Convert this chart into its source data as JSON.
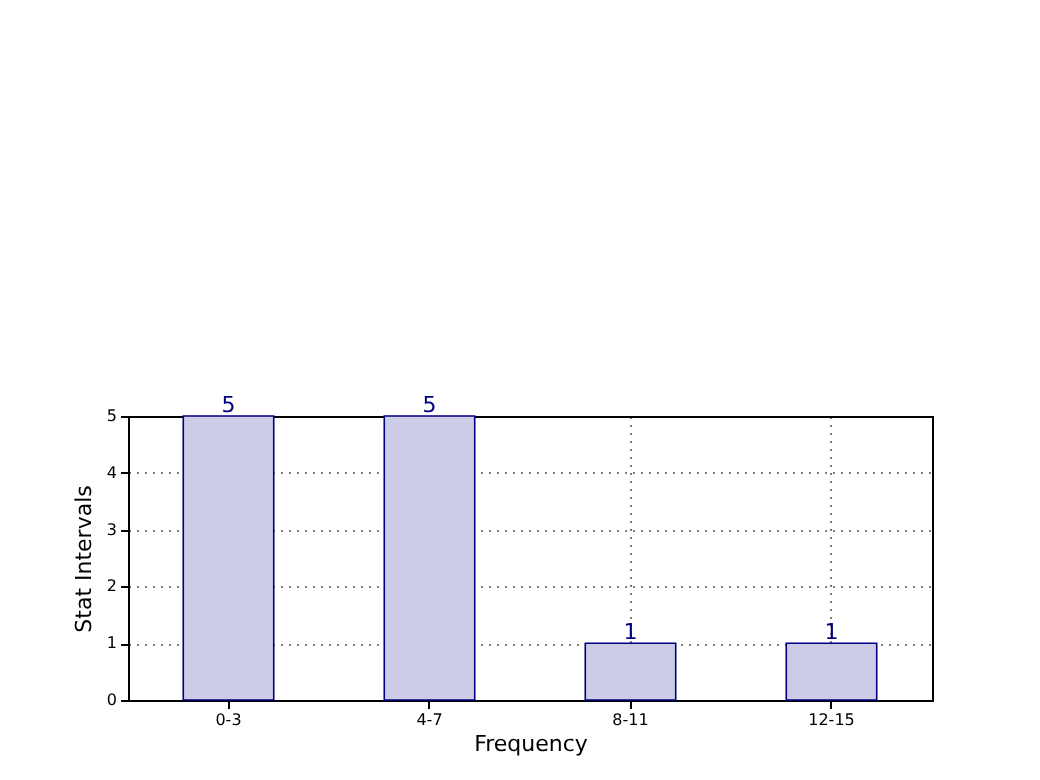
{
  "chart_data": {
    "type": "bar",
    "xlabel": "Frequency",
    "ylabel": "Stat Intervals",
    "categories": [
      "0-3",
      "4-7",
      "8-11",
      "12-15"
    ],
    "values": [
      5,
      5,
      1,
      1
    ],
    "color": "#cccce6",
    "ylim": [
      0,
      5
    ],
    "yticks": [
      0,
      1,
      2,
      3,
      4,
      5
    ],
    "grid": true,
    "data_labels": true
  }
}
